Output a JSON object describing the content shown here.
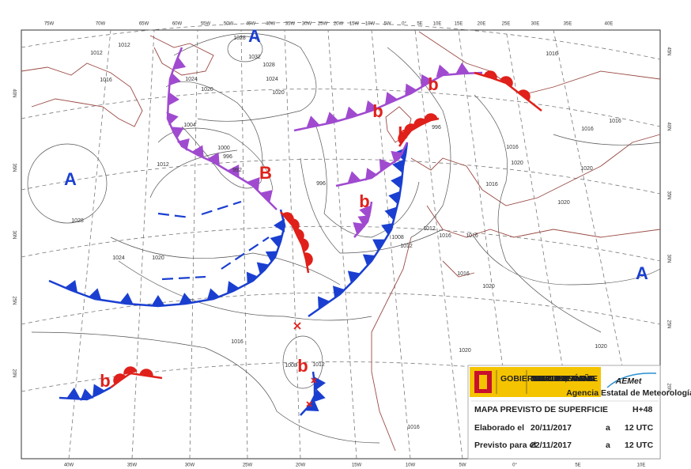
{
  "lon_top": [
    "75W",
    "70W",
    "65W",
    "60W",
    "55W",
    "50W",
    "45W",
    "40W",
    "35W",
    "30W",
    "25W",
    "20W",
    "15W",
    "10W",
    "5W",
    "0°",
    "5E",
    "10E",
    "15E",
    "20E",
    "25E",
    "30E",
    "35E",
    "40E"
  ],
  "lon_bottom": [
    "40W",
    "35W",
    "30W",
    "25W",
    "20W",
    "15W",
    "10W",
    "5W",
    "0°",
    "5E",
    "10E"
  ],
  "lat_left": [
    "40N",
    "35N",
    "30N",
    "25N",
    "20N"
  ],
  "lat_right": [
    "45N",
    "40N",
    "35N",
    "30N",
    "25N",
    "20N"
  ],
  "centers": [
    "A",
    "A",
    "B",
    "b",
    "b",
    "b",
    "b",
    "b",
    "b",
    "A"
  ],
  "isobar_labels": [
    "1028",
    "1032",
    "1028",
    "1024",
    "1020",
    "1012",
    "1012",
    "1016",
    "1024",
    "1020",
    "1004",
    "1000",
    "996",
    "992",
    "1012",
    "1028",
    "1024",
    "1020",
    "996",
    "996",
    "1008",
    "1012",
    "1012",
    "1016",
    "1016",
    "1016",
    "1020",
    "1020",
    "1016",
    "1008",
    "1012",
    "1016",
    "1016",
    "1020",
    "1016",
    "1020",
    "1020",
    "1020",
    "1016",
    "1016",
    "1016"
  ],
  "info": {
    "gov": "GOBIERNO DE ESPAÑA",
    "ministry": "MINISTERIO DE AGRICULTURA Y PESCA, ALIMENTACIÓN Y MEDIO AMBIENTE",
    "agency": "AEMet",
    "agency_full": "Agencia Estatal de Meteorología",
    "title": "MAPA PREVISTO DE SUPERFICIE",
    "lead": "H+48",
    "made_label": "Elaborado el",
    "made_date": "20/11/2017",
    "made_at": "a",
    "made_time": "12 UTC",
    "valid_label": "Previsto para el",
    "valid_date": "22/11/2017",
    "valid_at": "a",
    "valid_time": "12 UTC"
  }
}
